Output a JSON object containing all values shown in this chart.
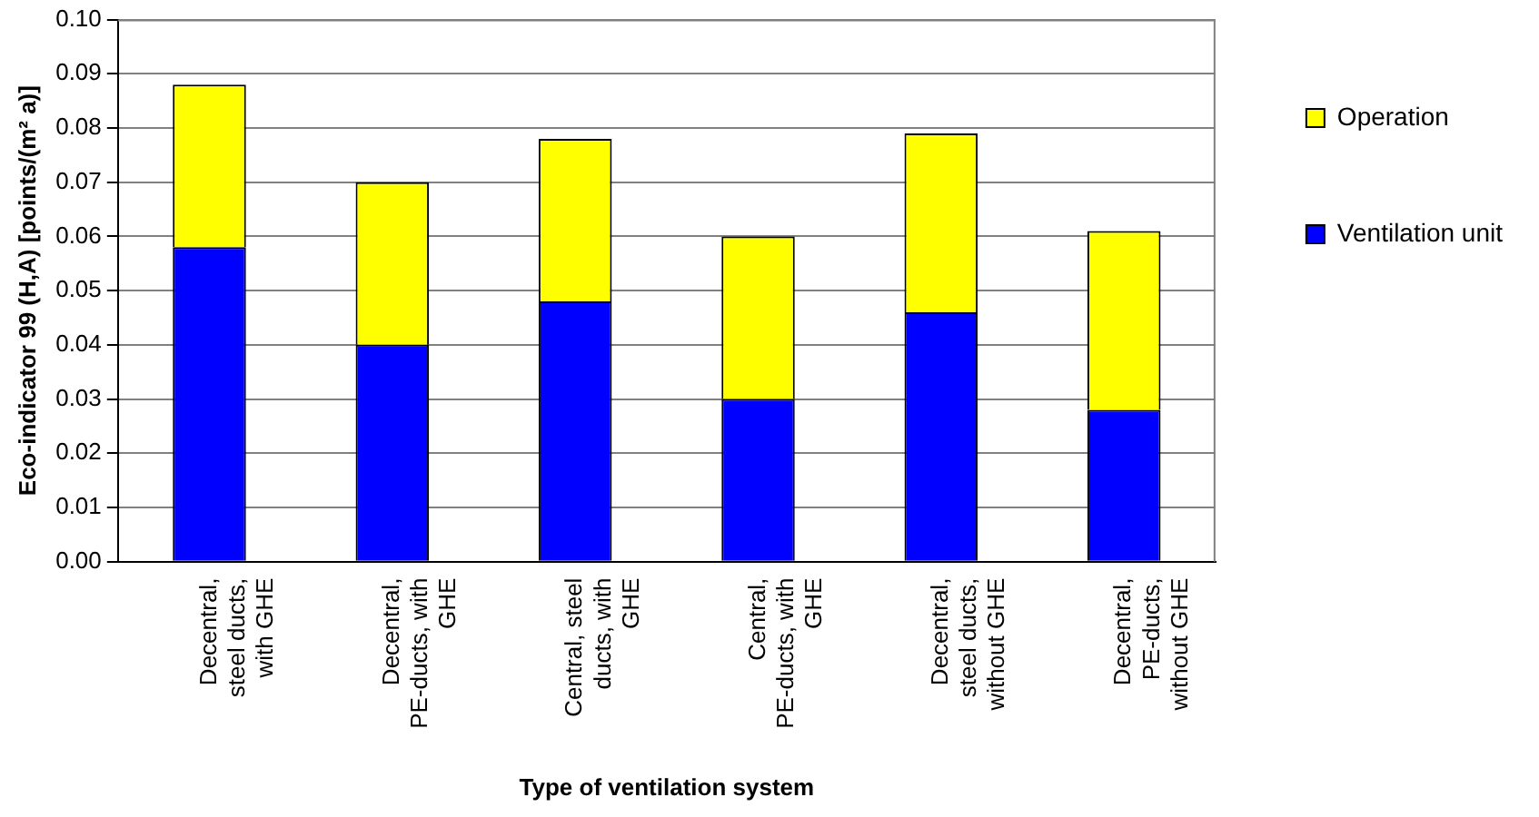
{
  "chart_data": {
    "type": "bar",
    "stacked": true,
    "xlabel": "Type of ventilation system",
    "ylabel": "Eco-indicator 99 (H,A) [points/(m² a)]",
    "categories": [
      "Decentral, steel ducts, with GHE",
      "Decentral, PE-ducts, with GHE",
      "Central, steel ducts, with GHE",
      "Central, PE-ducts, with GHE",
      "Decentral, steel ducts, without GHE",
      "Decentral, PE-ducts, without GHE"
    ],
    "series": [
      {
        "name": "Ventilation unit",
        "color": "#0000ff",
        "values": [
          0.058,
          0.04,
          0.048,
          0.03,
          0.046,
          0.028
        ]
      },
      {
        "name": "Operation",
        "color": "#ffff00",
        "values": [
          0.03,
          0.03,
          0.03,
          0.03,
          0.033,
          0.033
        ]
      }
    ],
    "ylim": [
      0,
      0.1
    ],
    "yticks": [
      {
        "value": 0,
        "label": "0.00"
      },
      0.01,
      0.02,
      0.03,
      0.04,
      0.05,
      0.06,
      0.07,
      0.08,
      0.09,
      {
        "value": 0.1,
        "label": "0.10"
      }
    ],
    "grid": "y",
    "legend": "top right"
  }
}
